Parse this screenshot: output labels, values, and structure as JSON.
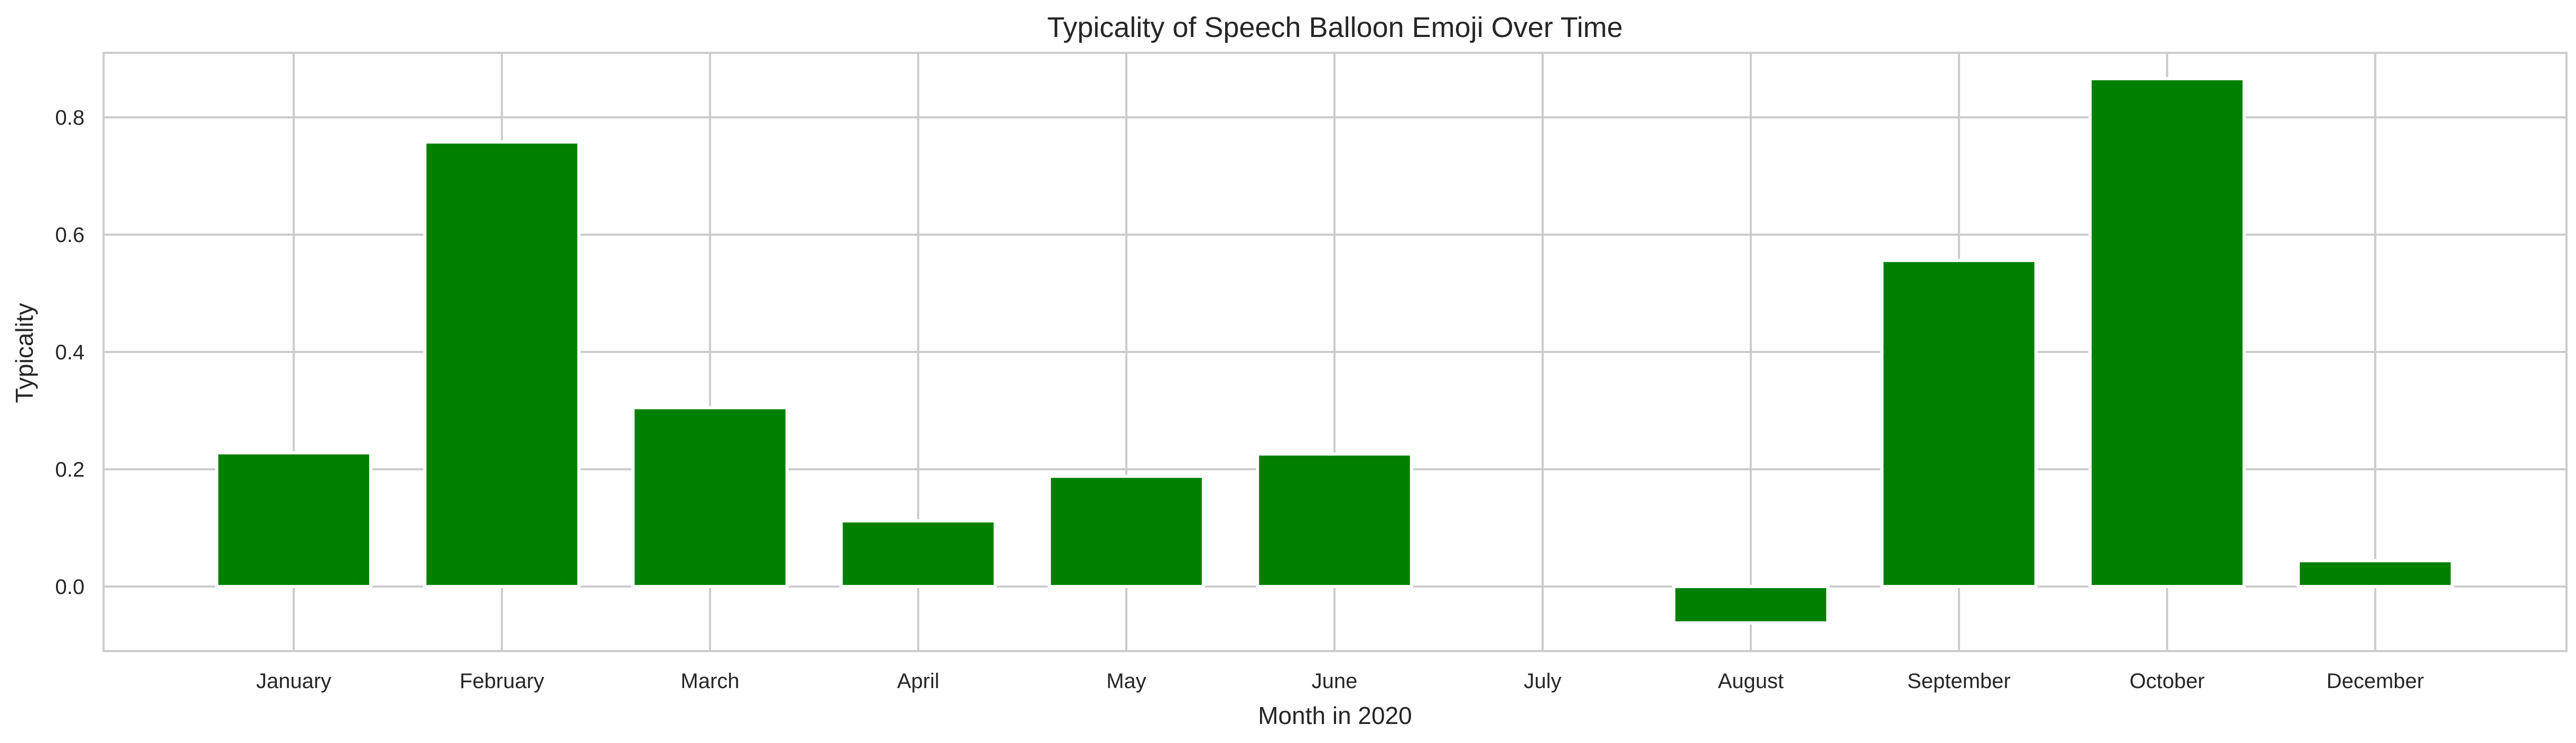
{
  "chart_data": {
    "type": "bar",
    "title": "Typicality of Speech Balloon Emoji Over Time",
    "xlabel": "Month in 2020",
    "ylabel": "Typicality",
    "categories": [
      "January",
      "February",
      "March",
      "April",
      "May",
      "June",
      "July",
      "August",
      "September",
      "October",
      "December"
    ],
    "values": [
      0.228,
      0.758,
      0.305,
      0.112,
      0.188,
      0.226,
      0.0,
      -0.062,
      0.556,
      0.866,
      0.044
    ],
    "ylim": [
      -0.11,
      0.91
    ],
    "yticks": [
      "0.0",
      "0.2",
      "0.4",
      "0.6",
      "0.8"
    ],
    "ytick_values": [
      0.0,
      0.2,
      0.4,
      0.6,
      0.8
    ],
    "grid": true,
    "bar_color": "#008000",
    "grid_color": "#cccccc"
  }
}
